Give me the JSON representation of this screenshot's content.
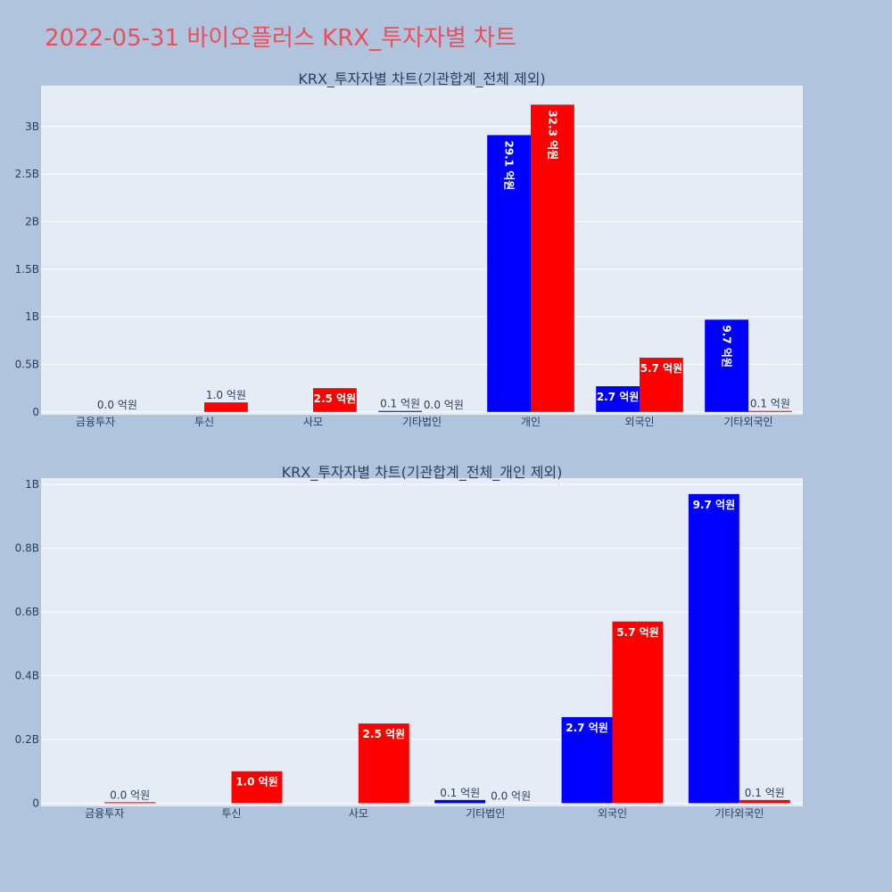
{
  "title": "2022-05-31 바이오플러스 KRX_투자자별 차트",
  "colors": {
    "buy": "#0000ff",
    "sell": "#ff0000",
    "title": "#e8505b"
  },
  "chart_data": [
    {
      "type": "bar",
      "title": "KRX_투자자별 차트(기관합계_전체 제외)",
      "categories": [
        "금융투자",
        "투신",
        "사모",
        "기타법인",
        "개인",
        "외국인",
        "기타외국인"
      ],
      "series": [
        {
          "color": "#0000ff",
          "values": [
            0,
            0,
            0,
            0.01,
            2.91,
            0.27,
            0.97
          ],
          "labels": [
            "",
            "",
            "",
            "0.1 억원",
            "29.1 억원",
            "2.7 억원",
            "9.7 억원"
          ]
        },
        {
          "color": "#ff0000",
          "values": [
            0,
            0.1,
            0.25,
            0,
            3.23,
            0.57,
            0.01
          ],
          "labels": [
            "0.0 억원",
            "1.0 억원",
            "2.5 억원",
            "0.0 억원",
            "32.3 억원",
            "5.7 억원",
            "0.1 억원"
          ]
        }
      ],
      "yticks": [
        "0",
        "0.5B",
        "1B",
        "1.5B",
        "2B",
        "2.5B",
        "3B"
      ],
      "ytick_values": [
        0,
        0.5,
        1,
        1.5,
        2,
        2.5,
        3
      ],
      "ylim": [
        -0.03,
        3.43
      ]
    },
    {
      "type": "bar",
      "title": "KRX_투자자별 차트(기관합계_전체_개인 제외)",
      "categories": [
        "금융투자",
        "투신",
        "사모",
        "기타법인",
        "외국인",
        "기타외국인"
      ],
      "series": [
        {
          "color": "#0000ff",
          "values": [
            0,
            0,
            0,
            0.01,
            0.27,
            0.97
          ],
          "labels": [
            "",
            "",
            "",
            "0.1 억원",
            "2.7 억원",
            "9.7 억원"
          ]
        },
        {
          "color": "#ff0000",
          "values": [
            0.003,
            0.1,
            0.25,
            0,
            0.57,
            0.01
          ],
          "labels": [
            "0.0 억원",
            "1.0 억원",
            "2.5 억원",
            "0.0 억원",
            "5.7 억원",
            "0.1 억원"
          ]
        }
      ],
      "yticks": [
        "0",
        "0.2B",
        "0.4B",
        "0.6B",
        "0.8B",
        "1B"
      ],
      "ytick_values": [
        0,
        0.2,
        0.4,
        0.6,
        0.8,
        1
      ],
      "ylim": [
        -0.01,
        1.02
      ]
    }
  ]
}
